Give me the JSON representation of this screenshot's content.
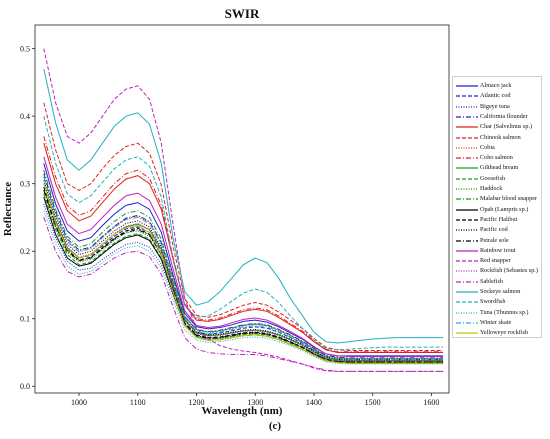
{
  "caption": "(c)",
  "chart_data": {
    "type": "line",
    "title": "SWIR",
    "xlabel": "Wavelength (nm)",
    "ylabel": "Reflectance",
    "xlim": [
      925,
      1630
    ],
    "ylim": [
      -0.01,
      0.535
    ],
    "xticks": [
      1000,
      1100,
      1200,
      1300,
      1400,
      1500,
      1600
    ],
    "yticks": [
      0.0,
      0.1,
      0.2,
      0.3,
      0.4,
      0.5
    ],
    "legend_position": "right",
    "grid": false,
    "x": [
      940,
      960,
      980,
      1000,
      1020,
      1040,
      1060,
      1080,
      1100,
      1120,
      1140,
      1160,
      1180,
      1200,
      1220,
      1240,
      1260,
      1280,
      1300,
      1320,
      1340,
      1360,
      1380,
      1400,
      1420,
      1440,
      1460,
      1480,
      1500,
      1520,
      1540,
      1560,
      1580,
      1600,
      1620
    ],
    "series": [
      {
        "name": "Almaco jack",
        "color": "#1f1fd0",
        "dash": "solid",
        "values": [
          0.33,
          0.27,
          0.23,
          0.215,
          0.22,
          0.238,
          0.255,
          0.268,
          0.272,
          0.262,
          0.228,
          0.165,
          0.108,
          0.088,
          0.085,
          0.087,
          0.091,
          0.096,
          0.098,
          0.095,
          0.088,
          0.079,
          0.07,
          0.058,
          0.048,
          0.045,
          0.045,
          0.045,
          0.045,
          0.045,
          0.045,
          0.045,
          0.045,
          0.045,
          0.045
        ]
      },
      {
        "name": "Atlantic cod",
        "color": "#1f1fd0",
        "dash": "dashed",
        "values": [
          0.3,
          0.245,
          0.205,
          0.19,
          0.194,
          0.208,
          0.222,
          0.233,
          0.236,
          0.228,
          0.2,
          0.148,
          0.098,
          0.08,
          0.077,
          0.079,
          0.082,
          0.086,
          0.088,
          0.086,
          0.08,
          0.072,
          0.064,
          0.053,
          0.044,
          0.041,
          0.04,
          0.04,
          0.04,
          0.04,
          0.04,
          0.04,
          0.04,
          0.04,
          0.04
        ]
      },
      {
        "name": "Bigeye tuna",
        "color": "#1f1fd0",
        "dash": "dotted",
        "values": [
          0.27,
          0.22,
          0.185,
          0.172,
          0.175,
          0.188,
          0.2,
          0.21,
          0.213,
          0.206,
          0.181,
          0.135,
          0.09,
          0.073,
          0.07,
          0.071,
          0.074,
          0.078,
          0.079,
          0.077,
          0.072,
          0.065,
          0.058,
          0.048,
          0.04,
          0.037,
          0.036,
          0.036,
          0.036,
          0.036,
          0.036,
          0.036,
          0.036,
          0.036,
          0.036
        ]
      },
      {
        "name": "California flounder",
        "color": "#1f1fd0",
        "dash": "dashdot",
        "values": [
          0.315,
          0.258,
          0.218,
          0.202,
          0.206,
          0.222,
          0.237,
          0.249,
          0.253,
          0.244,
          0.213,
          0.156,
          0.103,
          0.084,
          0.081,
          0.083,
          0.087,
          0.091,
          0.093,
          0.091,
          0.084,
          0.076,
          0.067,
          0.056,
          0.046,
          0.043,
          0.042,
          0.042,
          0.042,
          0.042,
          0.042,
          0.042,
          0.042,
          0.042,
          0.042
        ]
      },
      {
        "name": "Char (Salvelinus sp.)",
        "color": "#e02020",
        "dash": "solid",
        "values": [
          0.36,
          0.3,
          0.26,
          0.245,
          0.252,
          0.272,
          0.292,
          0.307,
          0.312,
          0.3,
          0.262,
          0.188,
          0.12,
          0.098,
          0.096,
          0.099,
          0.105,
          0.111,
          0.114,
          0.111,
          0.102,
          0.091,
          0.08,
          0.066,
          0.054,
          0.05,
          0.05,
          0.05,
          0.05,
          0.05,
          0.05,
          0.05,
          0.05,
          0.05,
          0.05
        ]
      },
      {
        "name": "Chinook salmon",
        "color": "#e02020",
        "dash": "dashed",
        "values": [
          0.42,
          0.35,
          0.3,
          0.29,
          0.3,
          0.322,
          0.342,
          0.355,
          0.36,
          0.345,
          0.298,
          0.208,
          0.13,
          0.105,
          0.102,
          0.106,
          0.113,
          0.12,
          0.124,
          0.12,
          0.11,
          0.098,
          0.086,
          0.071,
          0.058,
          0.054,
          0.053,
          0.053,
          0.053,
          0.053,
          0.053,
          0.053,
          0.053,
          0.053,
          0.053
        ]
      },
      {
        "name": "Cobia",
        "color": "#e02020",
        "dash": "dotted",
        "values": [
          0.31,
          0.255,
          0.215,
          0.2,
          0.205,
          0.221,
          0.236,
          0.248,
          0.252,
          0.243,
          0.212,
          0.155,
          0.102,
          0.083,
          0.08,
          0.082,
          0.086,
          0.09,
          0.092,
          0.09,
          0.083,
          0.075,
          0.066,
          0.055,
          0.045,
          0.042,
          0.041,
          0.041,
          0.041,
          0.041,
          0.041,
          0.041,
          0.041,
          0.041,
          0.041
        ]
      },
      {
        "name": "Coho salmon",
        "color": "#e02020",
        "dash": "dashdot",
        "values": [
          0.37,
          0.31,
          0.268,
          0.253,
          0.26,
          0.28,
          0.3,
          0.315,
          0.32,
          0.308,
          0.268,
          0.192,
          0.122,
          0.1,
          0.098,
          0.101,
          0.107,
          0.113,
          0.116,
          0.113,
          0.104,
          0.093,
          0.082,
          0.068,
          0.055,
          0.051,
          0.051,
          0.051,
          0.051,
          0.051,
          0.051,
          0.051,
          0.051,
          0.051,
          0.051
        ]
      },
      {
        "name": "Gilthead bream",
        "color": "#1a9a1a",
        "dash": "solid",
        "values": [
          0.3,
          0.245,
          0.205,
          0.19,
          0.195,
          0.21,
          0.225,
          0.236,
          0.24,
          0.232,
          0.203,
          0.15,
          0.098,
          0.079,
          0.075,
          0.076,
          0.079,
          0.082,
          0.083,
          0.081,
          0.076,
          0.069,
          0.061,
          0.051,
          0.042,
          0.039,
          0.038,
          0.038,
          0.038,
          0.038,
          0.038,
          0.038,
          0.038,
          0.038,
          0.038
        ]
      },
      {
        "name": "Goosefish",
        "color": "#1a9a1a",
        "dash": "dashed",
        "values": [
          0.285,
          0.232,
          0.195,
          0.18,
          0.184,
          0.198,
          0.212,
          0.222,
          0.226,
          0.218,
          0.19,
          0.14,
          0.092,
          0.074,
          0.07,
          0.071,
          0.074,
          0.077,
          0.078,
          0.076,
          0.071,
          0.064,
          0.057,
          0.047,
          0.039,
          0.036,
          0.035,
          0.035,
          0.035,
          0.035,
          0.035,
          0.035,
          0.035,
          0.035,
          0.035
        ]
      },
      {
        "name": "Haddock",
        "color": "#1a9a1a",
        "dash": "dotted",
        "values": [
          0.29,
          0.236,
          0.198,
          0.184,
          0.188,
          0.202,
          0.216,
          0.227,
          0.23,
          0.222,
          0.194,
          0.143,
          0.093,
          0.075,
          0.071,
          0.072,
          0.075,
          0.078,
          0.079,
          0.077,
          0.072,
          0.065,
          0.058,
          0.048,
          0.04,
          0.037,
          0.036,
          0.036,
          0.036,
          0.036,
          0.036,
          0.036,
          0.036,
          0.036,
          0.036
        ]
      },
      {
        "name": "Malabar blood snapper",
        "color": "#1a9a1a",
        "dash": "dashdot",
        "values": [
          0.32,
          0.262,
          0.222,
          0.206,
          0.211,
          0.228,
          0.244,
          0.256,
          0.26,
          0.25,
          0.218,
          0.16,
          0.104,
          0.084,
          0.08,
          0.082,
          0.086,
          0.09,
          0.092,
          0.09,
          0.083,
          0.075,
          0.066,
          0.055,
          0.045,
          0.042,
          0.041,
          0.041,
          0.041,
          0.041,
          0.041,
          0.041,
          0.041,
          0.041,
          0.041
        ]
      },
      {
        "name": "Opah (Lampris sp.)",
        "color": "#000000",
        "dash": "solid",
        "values": [
          0.28,
          0.225,
          0.19,
          0.178,
          0.182,
          0.196,
          0.21,
          0.22,
          0.224,
          0.216,
          0.188,
          0.138,
          0.09,
          0.072,
          0.068,
          0.069,
          0.072,
          0.075,
          0.076,
          0.074,
          0.069,
          0.062,
          0.055,
          0.046,
          0.038,
          0.035,
          0.034,
          0.034,
          0.034,
          0.034,
          0.034,
          0.034,
          0.034,
          0.034,
          0.034
        ]
      },
      {
        "name": "Pacific Halibut",
        "color": "#000000",
        "dash": "dashed",
        "values": [
          0.295,
          0.24,
          0.202,
          0.187,
          0.191,
          0.205,
          0.219,
          0.23,
          0.234,
          0.225,
          0.196,
          0.144,
          0.094,
          0.076,
          0.072,
          0.073,
          0.076,
          0.079,
          0.08,
          0.078,
          0.073,
          0.066,
          0.058,
          0.048,
          0.04,
          0.037,
          0.036,
          0.036,
          0.036,
          0.036,
          0.036,
          0.036,
          0.036,
          0.036,
          0.036
        ]
      },
      {
        "name": "Pacific cod",
        "color": "#000000",
        "dash": "dotted",
        "values": [
          0.305,
          0.25,
          0.21,
          0.195,
          0.2,
          0.215,
          0.23,
          0.241,
          0.245,
          0.236,
          0.206,
          0.152,
          0.099,
          0.08,
          0.076,
          0.077,
          0.08,
          0.083,
          0.084,
          0.082,
          0.077,
          0.07,
          0.062,
          0.052,
          0.043,
          0.04,
          0.039,
          0.039,
          0.039,
          0.039,
          0.039,
          0.039,
          0.039,
          0.039,
          0.039
        ]
      },
      {
        "name": "Petrale sole",
        "color": "#000000",
        "dash": "dashdot",
        "values": [
          0.29,
          0.237,
          0.2,
          0.186,
          0.19,
          0.204,
          0.218,
          0.228,
          0.232,
          0.224,
          0.195,
          0.143,
          0.093,
          0.075,
          0.071,
          0.072,
          0.075,
          0.078,
          0.079,
          0.077,
          0.072,
          0.065,
          0.058,
          0.048,
          0.04,
          0.037,
          0.036,
          0.036,
          0.036,
          0.036,
          0.036,
          0.036,
          0.036,
          0.036,
          0.036
        ]
      },
      {
        "name": "Rainbow trout",
        "color": "#c020c0",
        "dash": "solid",
        "values": [
          0.34,
          0.28,
          0.24,
          0.226,
          0.232,
          0.25,
          0.268,
          0.282,
          0.286,
          0.275,
          0.24,
          0.174,
          0.112,
          0.09,
          0.087,
          0.089,
          0.094,
          0.099,
          0.101,
          0.098,
          0.09,
          0.081,
          0.071,
          0.059,
          0.048,
          0.045,
          0.044,
          0.044,
          0.044,
          0.044,
          0.044,
          0.044,
          0.044,
          0.044,
          0.044
        ]
      },
      {
        "name": "Red snapper",
        "color": "#c020c0",
        "dash": "dashed",
        "values": [
          0.5,
          0.42,
          0.37,
          0.36,
          0.375,
          0.4,
          0.425,
          0.44,
          0.445,
          0.425,
          0.36,
          0.24,
          0.13,
          0.085,
          0.07,
          0.06,
          0.055,
          0.052,
          0.05,
          0.047,
          0.043,
          0.038,
          0.033,
          0.027,
          0.023,
          0.022,
          0.022,
          0.022,
          0.022,
          0.022,
          0.022,
          0.022,
          0.022,
          0.022,
          0.022
        ]
      },
      {
        "name": "Rockfish (Sebastes sp.)",
        "color": "#c020c0",
        "dash": "dotted",
        "values": [
          0.3,
          0.245,
          0.206,
          0.191,
          0.196,
          0.211,
          0.226,
          0.237,
          0.241,
          0.232,
          0.202,
          0.149,
          0.097,
          0.078,
          0.074,
          0.075,
          0.078,
          0.081,
          0.082,
          0.08,
          0.075,
          0.068,
          0.06,
          0.05,
          0.041,
          0.038,
          0.037,
          0.037,
          0.037,
          0.037,
          0.037,
          0.037,
          0.037,
          0.037,
          0.037
        ]
      },
      {
        "name": "Sablefish",
        "color": "#c020c0",
        "dash": "dashdot",
        "values": [
          0.25,
          0.2,
          0.17,
          0.162,
          0.166,
          0.178,
          0.19,
          0.198,
          0.2,
          0.192,
          0.166,
          0.118,
          0.072,
          0.055,
          0.05,
          0.048,
          0.047,
          0.047,
          0.047,
          0.045,
          0.041,
          0.037,
          0.033,
          0.028,
          0.024,
          0.022,
          0.022,
          0.022,
          0.022,
          0.022,
          0.022,
          0.022,
          0.022,
          0.022,
          0.022
        ]
      },
      {
        "name": "Sockeye salmon",
        "color": "#20b0c0",
        "dash": "solid",
        "values": [
          0.47,
          0.39,
          0.335,
          0.32,
          0.335,
          0.36,
          0.385,
          0.4,
          0.405,
          0.388,
          0.33,
          0.22,
          0.14,
          0.12,
          0.125,
          0.14,
          0.16,
          0.18,
          0.19,
          0.183,
          0.16,
          0.13,
          0.105,
          0.08,
          0.066,
          0.064,
          0.066,
          0.068,
          0.07,
          0.071,
          0.072,
          0.072,
          0.072,
          0.072,
          0.072
        ]
      },
      {
        "name": "Swordfish",
        "color": "#20b0c0",
        "dash": "dashed",
        "values": [
          0.4,
          0.33,
          0.285,
          0.272,
          0.282,
          0.302,
          0.322,
          0.335,
          0.34,
          0.326,
          0.28,
          0.19,
          0.12,
          0.102,
          0.104,
          0.114,
          0.126,
          0.138,
          0.144,
          0.139,
          0.124,
          0.104,
          0.086,
          0.068,
          0.056,
          0.054,
          0.055,
          0.056,
          0.057,
          0.058,
          0.058,
          0.058,
          0.058,
          0.058,
          0.058
        ]
      },
      {
        "name": "Tuna (Thunnus sp.)",
        "color": "#20b0c0",
        "dash": "dotted",
        "values": [
          0.26,
          0.212,
          0.178,
          0.166,
          0.17,
          0.183,
          0.196,
          0.205,
          0.208,
          0.2,
          0.175,
          0.128,
          0.084,
          0.068,
          0.065,
          0.066,
          0.069,
          0.072,
          0.073,
          0.071,
          0.066,
          0.06,
          0.053,
          0.044,
          0.036,
          0.034,
          0.033,
          0.033,
          0.033,
          0.033,
          0.033,
          0.033,
          0.033,
          0.033,
          0.033
        ]
      },
      {
        "name": "Winter skate",
        "color": "#20b0c0",
        "dash": "dashdot",
        "values": [
          0.31,
          0.254,
          0.214,
          0.199,
          0.204,
          0.22,
          0.235,
          0.247,
          0.25,
          0.241,
          0.21,
          0.154,
          0.1,
          0.081,
          0.078,
          0.08,
          0.084,
          0.088,
          0.09,
          0.088,
          0.081,
          0.073,
          0.065,
          0.054,
          0.044,
          0.041,
          0.04,
          0.04,
          0.04,
          0.04,
          0.04,
          0.04,
          0.04,
          0.04,
          0.04
        ]
      },
      {
        "name": "Yelloweye rockfish",
        "color": "#c8c800",
        "dash": "solid",
        "values": [
          0.3,
          0.242,
          0.203,
          0.19,
          0.195,
          0.21,
          0.225,
          0.235,
          0.238,
          0.228,
          0.196,
          0.14,
          0.09,
          0.072,
          0.068,
          0.069,
          0.072,
          0.075,
          0.076,
          0.074,
          0.069,
          0.062,
          0.055,
          0.046,
          0.038,
          0.035,
          0.034,
          0.034,
          0.034,
          0.034,
          0.034,
          0.034,
          0.034,
          0.034,
          0.034
        ]
      }
    ]
  }
}
